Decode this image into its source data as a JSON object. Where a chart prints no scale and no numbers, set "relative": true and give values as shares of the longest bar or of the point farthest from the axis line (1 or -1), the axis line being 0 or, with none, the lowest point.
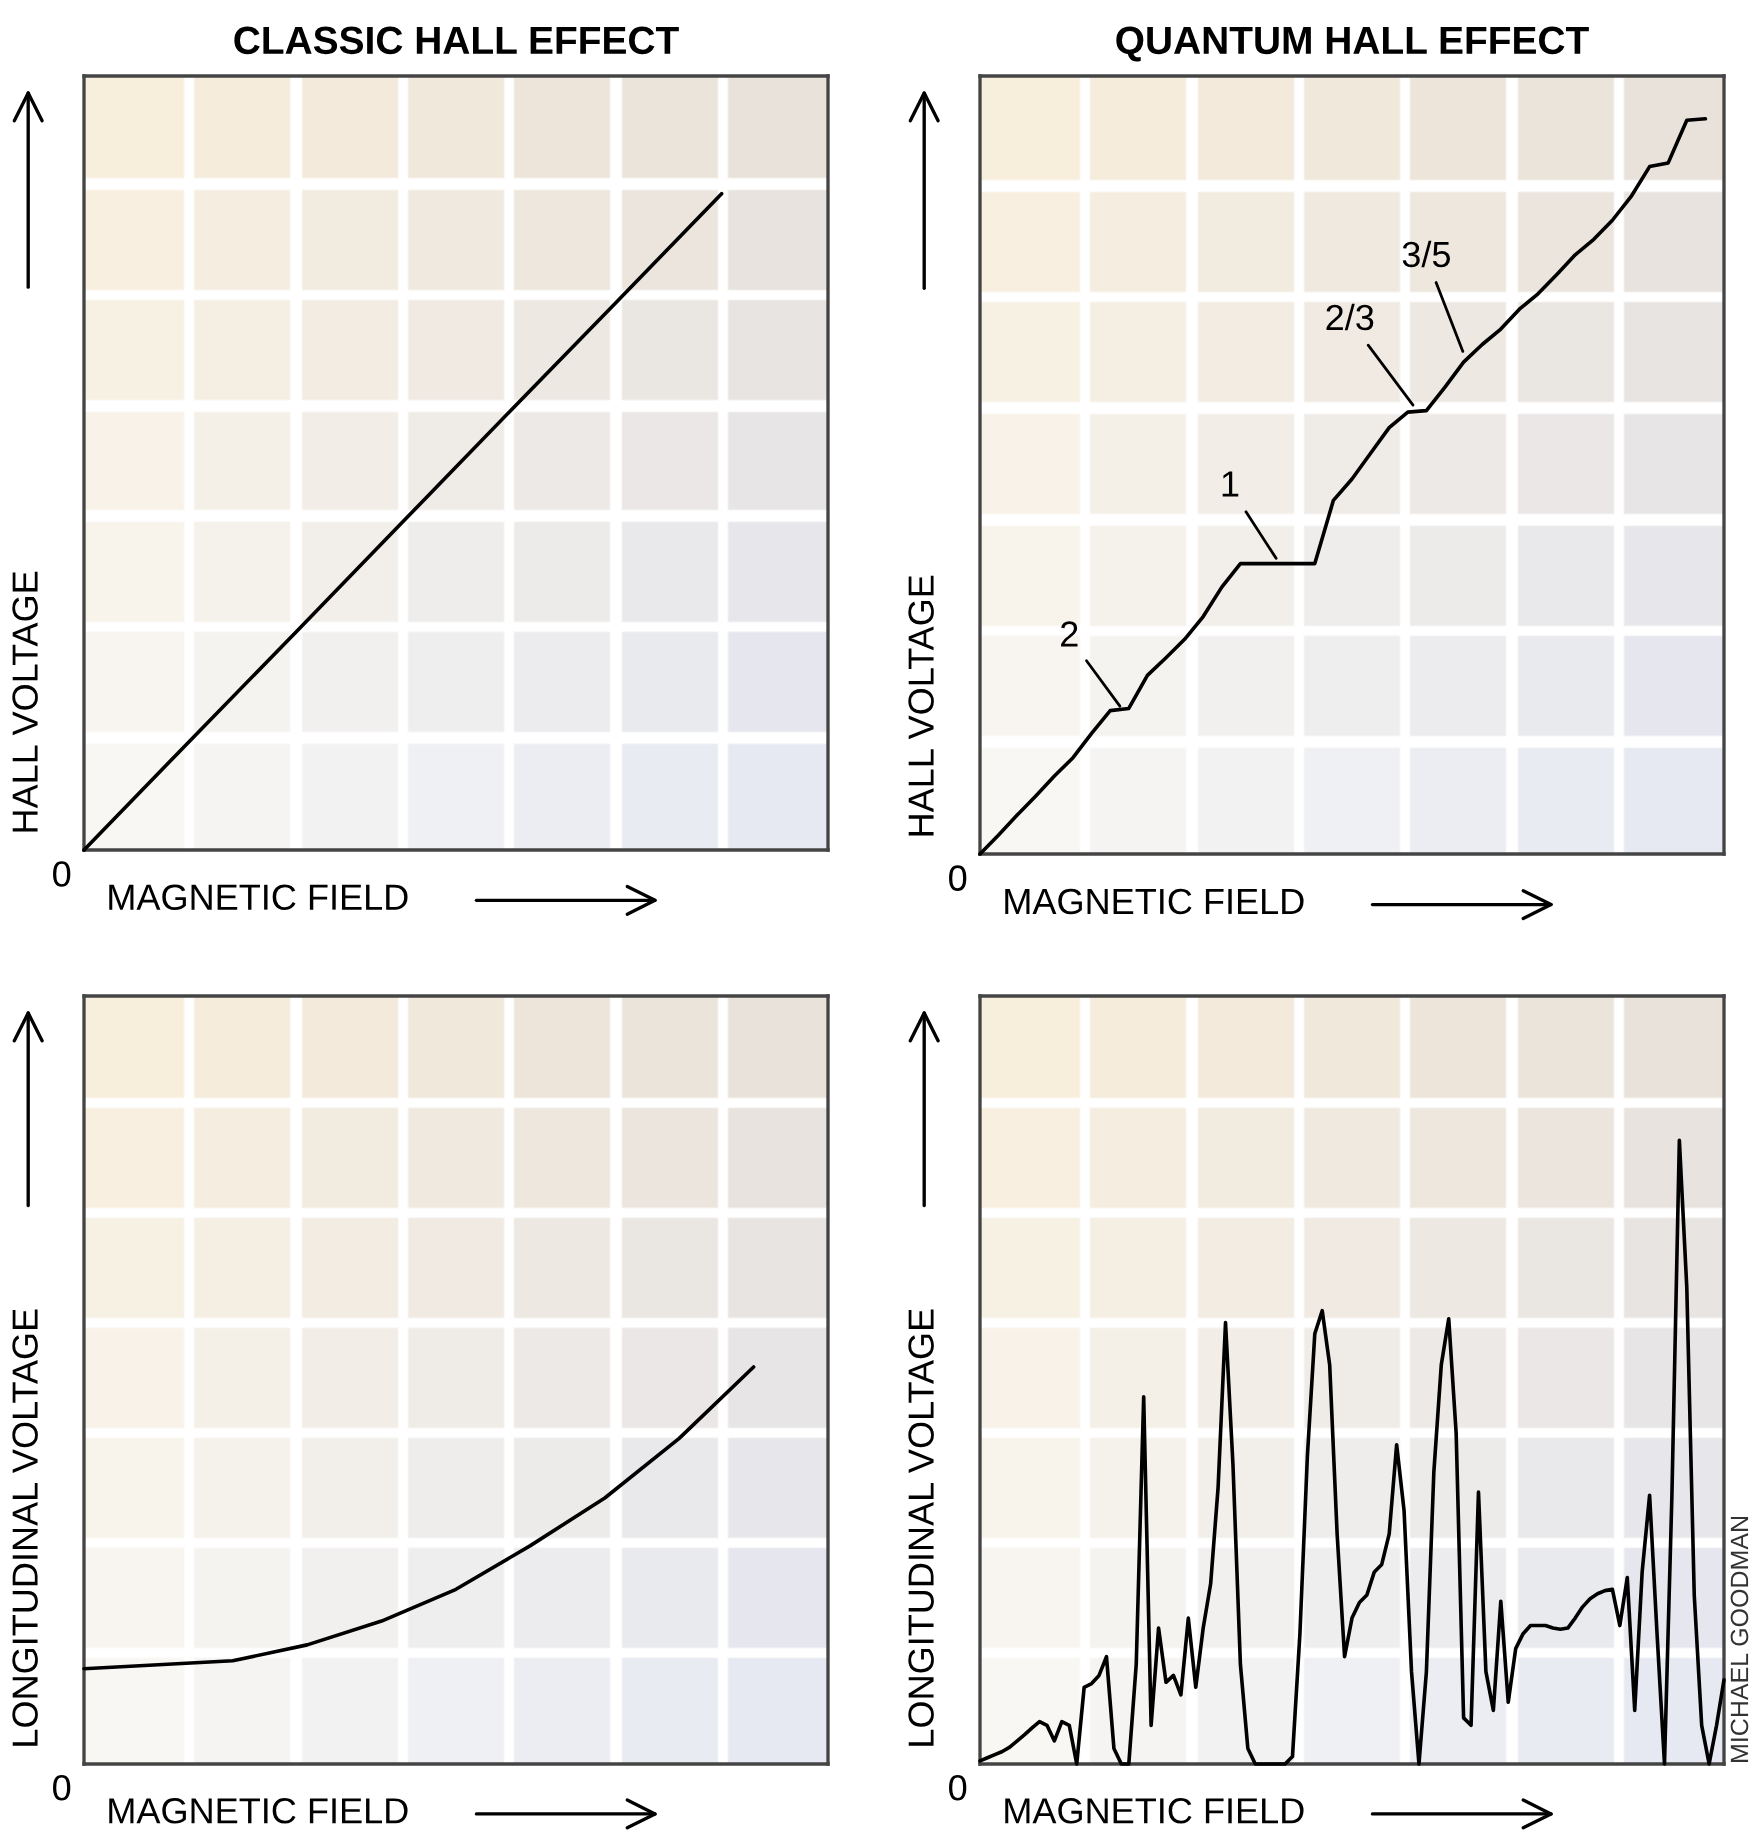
{
  "chart_data": [
    {
      "type": "line",
      "title": "CLASSIC HALL EFFECT",
      "xlabel": "MAGNETIC FIELD",
      "ylabel": "HALL VOLTAGE",
      "relative": true,
      "annotations": [
        "0"
      ],
      "categories": [
        null,
        null,
        null,
        null,
        null,
        null,
        null
      ],
      "series": [
        {
          "color": "#000000",
          "values": [
            0,
            0.167,
            0.333,
            0.5,
            0.667,
            0.833,
            1
          ]
        }
      ]
    },
    {
      "type": "line",
      "title": "QUANTUM HALL EFFECT",
      "xlabel": "MAGNETIC FIELD",
      "ylabel": "HALL VOLTAGE",
      "relative": true,
      "annotations": [
        "0",
        "2",
        "1",
        "2/3",
        "3/5"
      ],
      "categories": [
        null,
        null,
        null,
        null,
        null,
        null,
        null,
        null,
        null,
        null,
        null,
        null,
        null,
        null,
        null,
        null,
        null,
        null,
        null,
        null,
        null,
        null,
        null,
        null,
        null,
        null,
        null,
        null,
        null,
        null,
        null,
        null,
        null,
        null,
        null,
        null,
        null,
        null,
        null,
        null
      ],
      "series": [
        {
          "color": "#000000",
          "values": [
            0,
            0.026,
            0.053,
            0.079,
            0.106,
            0.131,
            0.164,
            0.195,
            0.198,
            0.243,
            0.267,
            0.292,
            0.323,
            0.363,
            0.395,
            0.395,
            0.395,
            0.395,
            0.395,
            0.481,
            0.51,
            0.545,
            0.58,
            0.601,
            0.603,
            0.635,
            0.669,
            0.693,
            0.714,
            0.741,
            0.762,
            0.788,
            0.815,
            0.836,
            0.862,
            0.894,
            0.935,
            0.94,
            0.998,
            1
          ]
        }
      ]
    },
    {
      "type": "line",
      "xlabel": "MAGNETIC FIELD",
      "ylabel": "LONGITUDINAL VOLTAGE",
      "relative": true,
      "annotations": [
        "0"
      ],
      "categories": [
        null,
        null,
        null,
        null,
        null,
        null,
        null,
        null,
        null,
        null
      ],
      "series": [
        {
          "color": "#000000",
          "values": [
            0.24,
            0.25,
            0.26,
            0.3,
            0.36,
            0.44,
            0.55,
            0.67,
            0.82,
            1
          ]
        }
      ]
    },
    {
      "type": "line",
      "xlabel": "MAGNETIC FIELD",
      "ylabel": "LONGITUDINAL VOLTAGE",
      "relative": true,
      "annotations": [
        "0",
        "MICHAEL GOODMAN"
      ],
      "categories": [
        null,
        null,
        null,
        null,
        null,
        null,
        null,
        null,
        null,
        null,
        null,
        null,
        null,
        null,
        null,
        null,
        null,
        null,
        null,
        null,
        null,
        null,
        null,
        null,
        null,
        null,
        null,
        null,
        null,
        null,
        null,
        null,
        null,
        null,
        null,
        null,
        null,
        null,
        null,
        null,
        null,
        null,
        null,
        null,
        null,
        null,
        null,
        null,
        null,
        null,
        null,
        null,
        null,
        null,
        null,
        null,
        null,
        null,
        null,
        null,
        null,
        null,
        null,
        null,
        null,
        null,
        null,
        null,
        null,
        null,
        null,
        null,
        null,
        null,
        null,
        null,
        null,
        null,
        null,
        null,
        null,
        null,
        null,
        null,
        null,
        null,
        null,
        null,
        null,
        null,
        null,
        null,
        null,
        null,
        null,
        null,
        null,
        null,
        null,
        null,
        null
      ],
      "series": [
        {
          "color": "#000000",
          "values": [
            0.005,
            0.01,
            0.015,
            0.02,
            0.027,
            0.037,
            0.047,
            0.058,
            0.068,
            0.062,
            0.037,
            0.068,
            0.062,
            0,
            0.123,
            0.129,
            0.142,
            0.172,
            0.025,
            0,
            0,
            0.16,
            0.589,
            0.062,
            0.218,
            0.131,
            0.142,
            0.111,
            0.234,
            0.123,
            0.218,
            0.289,
            0.443,
            0.708,
            0.48,
            0.16,
            0.025,
            0,
            0,
            0,
            0,
            0,
            0.012,
            0.209,
            0.493,
            0.69,
            0.727,
            0.64,
            0.369,
            0.172,
            0.234,
            0.259,
            0.271,
            0.308,
            0.32,
            0.369,
            0.512,
            0.406,
            0.148,
            0,
            0.148,
            0.468,
            0.64,
            0.714,
            0.53,
            0.074,
            0.062,
            0.436,
            0.148,
            0.086,
            0.261,
            0.099,
            0.185,
            0.209,
            0.222,
            0.222,
            0.222,
            0.218,
            0.216,
            0.218,
            0.234,
            0.252,
            0.265,
            0.273,
            0.278,
            0.28,
            0.222,
            0.299,
            0.086,
            0.308,
            0.431,
            0.209,
            0,
            0.431,
            1,
            0.764,
            0.271,
            0.062,
            0,
            0.062,
            0.135
          ]
        }
      ]
    }
  ]
}
